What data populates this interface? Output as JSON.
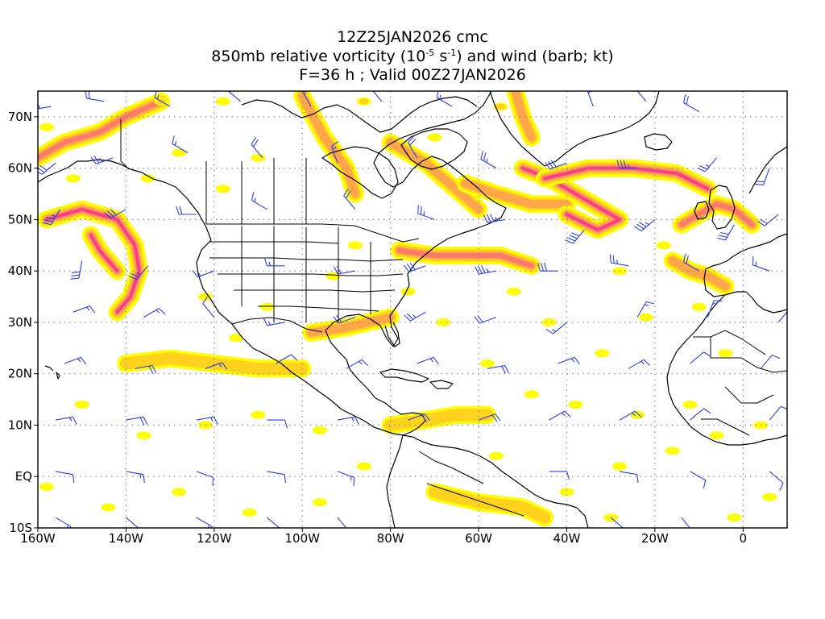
{
  "title": {
    "line1": "12Z25JAN2026 cmc",
    "line2_pre": "850mb relative vorticity (10",
    "line2_exp1": "-5",
    "line2_mid": " s",
    "line2_exp2": "-1",
    "line2_post": ") and wind (barb; kt)",
    "line3": "F=36 h ; Valid 00Z27JAN2026"
  },
  "axes": {
    "x_ticks": [
      {
        "value": -160,
        "label": "160W"
      },
      {
        "value": -140,
        "label": "140W"
      },
      {
        "value": -120,
        "label": "120W"
      },
      {
        "value": -100,
        "label": "100W"
      },
      {
        "value": -80,
        "label": "80W"
      },
      {
        "value": -60,
        "label": "60W"
      },
      {
        "value": -40,
        "label": "40W"
      },
      {
        "value": -20,
        "label": "20W"
      },
      {
        "value": 0,
        "label": "0"
      }
    ],
    "y_ticks": [
      {
        "value": -10,
        "label": "10S"
      },
      {
        "value": 0,
        "label": "EQ"
      },
      {
        "value": 10,
        "label": "10N"
      },
      {
        "value": 20,
        "label": "20N"
      },
      {
        "value": 30,
        "label": "30N"
      },
      {
        "value": 40,
        "label": "40N"
      },
      {
        "value": 50,
        "label": "50N"
      },
      {
        "value": 60,
        "label": "60N"
      },
      {
        "value": 70,
        "label": "70N"
      }
    ],
    "lon_range": [
      -160,
      10
    ],
    "lat_range": [
      -10,
      75
    ],
    "grid": true,
    "grid_style": "dotted"
  },
  "colors": {
    "vorticity_levels": [
      "#ffff00",
      "#ffd21e",
      "#ffa54a",
      "#ff7a6a",
      "#ff3a8a"
    ],
    "barb": "#2b3fe0",
    "coastline": "#000000",
    "grid": "#8c8c8c"
  },
  "vorticity_features": [
    {
      "name": "gulf-of-alaska-low",
      "path": [
        [
          -158,
          50
        ],
        [
          -150,
          52
        ],
        [
          -142,
          50
        ],
        [
          -138,
          45
        ],
        [
          -137,
          40
        ],
        [
          -139,
          35
        ],
        [
          -142,
          32
        ]
      ],
      "peak": 4
    },
    {
      "name": "alaska-band",
      "path": [
        [
          -160,
          62
        ],
        [
          -154,
          65
        ],
        [
          -146,
          67
        ],
        [
          -140,
          70
        ],
        [
          -132,
          73
        ]
      ],
      "peak": 3
    },
    {
      "name": "nepac-inner",
      "path": [
        [
          -148,
          47
        ],
        [
          -146,
          44
        ],
        [
          -144,
          42
        ],
        [
          -142,
          40
        ]
      ],
      "peak": 4
    },
    {
      "name": "hudson-band",
      "path": [
        [
          -100,
          74
        ],
        [
          -95,
          66
        ],
        [
          -90,
          60
        ],
        [
          -88,
          55
        ]
      ],
      "peak": 2
    },
    {
      "name": "canada-east",
      "path": [
        [
          -80,
          65
        ],
        [
          -72,
          61
        ],
        [
          -64,
          55
        ],
        [
          -60,
          52
        ]
      ],
      "peak": 2
    },
    {
      "name": "us-east-coast",
      "path": [
        [
          -78,
          44
        ],
        [
          -70,
          43
        ],
        [
          -62,
          43
        ],
        [
          -55,
          43
        ],
        [
          -48,
          41
        ]
      ],
      "peak": 3
    },
    {
      "name": "labrador-sea",
      "path": [
        [
          -63,
          57
        ],
        [
          -56,
          55
        ],
        [
          -48,
          53
        ],
        [
          -40,
          53
        ]
      ],
      "peak": 2
    },
    {
      "name": "atlantic-low",
      "path": [
        [
          -50,
          60
        ],
        [
          -44,
          58
        ],
        [
          -38,
          55
        ],
        [
          -32,
          52
        ],
        [
          -28,
          50
        ],
        [
          -33,
          48
        ],
        [
          -40,
          51
        ]
      ],
      "peak": 4
    },
    {
      "name": "iceland-band",
      "path": [
        [
          -45,
          58
        ],
        [
          -35,
          60
        ],
        [
          -25,
          60
        ],
        [
          -15,
          59
        ],
        [
          -8,
          56
        ]
      ],
      "peak": 4
    },
    {
      "name": "uk-low",
      "path": [
        [
          -14,
          49
        ],
        [
          -10,
          51
        ],
        [
          -6,
          53
        ],
        [
          -2,
          52
        ],
        [
          2,
          49
        ]
      ],
      "peak": 3
    },
    {
      "name": "iberia",
      "path": [
        [
          -16,
          42
        ],
        [
          -12,
          40
        ],
        [
          -8,
          39
        ],
        [
          -4,
          37
        ]
      ],
      "peak": 2
    },
    {
      "name": "greenland-east",
      "path": [
        [
          -52,
          76
        ],
        [
          -50,
          70
        ],
        [
          -48,
          66
        ]
      ],
      "peak": 2
    },
    {
      "name": "gulf-coast",
      "path": [
        [
          -98,
          28
        ],
        [
          -90,
          29
        ],
        [
          -85,
          30
        ],
        [
          -80,
          31
        ]
      ],
      "peak": 2
    },
    {
      "name": "tropical-pacific",
      "path": [
        [
          -140,
          22
        ],
        [
          -130,
          23
        ],
        [
          -120,
          22
        ],
        [
          -110,
          21
        ],
        [
          -100,
          21
        ]
      ],
      "peak": 1
    },
    {
      "name": "caribbean",
      "path": [
        [
          -80,
          10
        ],
        [
          -72,
          11
        ],
        [
          -65,
          12
        ],
        [
          -58,
          12
        ]
      ],
      "peak": 1
    },
    {
      "name": "amazon",
      "path": [
        [
          -70,
          -3
        ],
        [
          -60,
          -5
        ],
        [
          -50,
          -6
        ],
        [
          -45,
          -8
        ]
      ],
      "peak": 1
    }
  ],
  "vorticity_spots": [
    [
      -158,
      68,
      1
    ],
    [
      -132,
      73,
      2
    ],
    [
      -118,
      73,
      1
    ],
    [
      -86,
      73,
      2
    ],
    [
      -70,
      66,
      1
    ],
    [
      -55,
      72,
      2
    ],
    [
      -152,
      58,
      1
    ],
    [
      -135,
      58,
      1
    ],
    [
      -128,
      63,
      1
    ],
    [
      -110,
      62,
      1
    ],
    [
      -118,
      56,
      1
    ],
    [
      -122,
      35,
      1
    ],
    [
      -115,
      27,
      1
    ],
    [
      -108,
      33,
      1
    ],
    [
      -93,
      39,
      1
    ],
    [
      -88,
      45,
      1
    ],
    [
      -76,
      36,
      1
    ],
    [
      -68,
      30,
      1
    ],
    [
      -58,
      22,
      1
    ],
    [
      -52,
      36,
      1
    ],
    [
      -44,
      30,
      1
    ],
    [
      -32,
      24,
      1
    ],
    [
      -22,
      31,
      1
    ],
    [
      -28,
      40,
      1
    ],
    [
      -18,
      45,
      1
    ],
    [
      -10,
      33,
      1
    ],
    [
      -4,
      24,
      1
    ],
    [
      -12,
      14,
      1
    ],
    [
      -24,
      12,
      1
    ],
    [
      -38,
      14,
      1
    ],
    [
      -48,
      16,
      1
    ],
    [
      -150,
      14,
      1
    ],
    [
      -136,
      8,
      1
    ],
    [
      -122,
      10,
      1
    ],
    [
      -110,
      12,
      1
    ],
    [
      -96,
      9,
      1
    ],
    [
      -86,
      2,
      1
    ],
    [
      -158,
      -2,
      1
    ],
    [
      -144,
      -6,
      1
    ],
    [
      -128,
      -3,
      1
    ],
    [
      -112,
      -7,
      1
    ],
    [
      -96,
      -5,
      1
    ],
    [
      -40,
      -3,
      1
    ],
    [
      -28,
      2,
      1
    ],
    [
      -16,
      5,
      1
    ],
    [
      -6,
      8,
      1
    ],
    [
      4,
      10,
      1
    ],
    [
      6,
      -4,
      1
    ],
    [
      -2,
      -8,
      1
    ],
    [
      -30,
      -8,
      1
    ],
    [
      -56,
      4,
      1
    ]
  ],
  "wind_barbs": [
    [
      -157,
      72,
      260,
      25
    ],
    [
      -145,
      73,
      280,
      20
    ],
    [
      -130,
      72,
      300,
      15
    ],
    [
      -114,
      73,
      310,
      20
    ],
    [
      -98,
      72,
      330,
      15
    ],
    [
      -82,
      73,
      320,
      20
    ],
    [
      -66,
      72,
      300,
      15
    ],
    [
      -34,
      72,
      340,
      20
    ],
    [
      -22,
      73,
      320,
      15
    ],
    [
      -10,
      71,
      300,
      20
    ],
    [
      -156,
      61,
      230,
      30
    ],
    [
      -143,
      62,
      250,
      25
    ],
    [
      -126,
      63,
      300,
      15
    ],
    [
      -109,
      62,
      320,
      20
    ],
    [
      -92,
      61,
      340,
      15
    ],
    [
      -74,
      62,
      330,
      20
    ],
    [
      -56,
      60,
      300,
      25
    ],
    [
      -40,
      61,
      250,
      30
    ],
    [
      -24,
      60,
      270,
      35
    ],
    [
      -6,
      62,
      220,
      25
    ],
    [
      6,
      60,
      200,
      20
    ],
    [
      -155,
      52,
      210,
      35
    ],
    [
      -140,
      52,
      240,
      30
    ],
    [
      -124,
      51,
      270,
      20
    ],
    [
      -108,
      52,
      300,
      15
    ],
    [
      -88,
      52,
      320,
      20
    ],
    [
      -70,
      50,
      290,
      25
    ],
    [
      -54,
      50,
      260,
      35
    ],
    [
      -36,
      48,
      220,
      40
    ],
    [
      -20,
      50,
      230,
      35
    ],
    [
      -2,
      49,
      210,
      30
    ],
    [
      8,
      51,
      230,
      20
    ],
    [
      -150,
      42,
      190,
      30
    ],
    [
      -135,
      41,
      220,
      25
    ],
    [
      -120,
      40,
      250,
      15
    ],
    [
      -104,
      41,
      270,
      15
    ],
    [
      -88,
      40,
      260,
      20
    ],
    [
      -72,
      41,
      250,
      30
    ],
    [
      -56,
      40,
      260,
      35
    ],
    [
      -42,
      40,
      270,
      30
    ],
    [
      -26,
      41,
      280,
      25
    ],
    [
      -10,
      40,
      300,
      20
    ],
    [
      6,
      40,
      290,
      15
    ],
    [
      -152,
      32,
      70,
      15
    ],
    [
      -136,
      31,
      60,
      15
    ],
    [
      -120,
      31,
      320,
      10
    ],
    [
      -104,
      30,
      260,
      15
    ],
    [
      -88,
      31,
      250,
      20
    ],
    [
      -72,
      32,
      240,
      25
    ],
    [
      -56,
      31,
      250,
      20
    ],
    [
      -40,
      30,
      230,
      15
    ],
    [
      -24,
      31,
      30,
      15
    ],
    [
      -8,
      31,
      20,
      15
    ],
    [
      8,
      30,
      40,
      10
    ],
    [
      -154,
      22,
      70,
      15
    ],
    [
      -138,
      21,
      80,
      20
    ],
    [
      -122,
      21,
      70,
      15
    ],
    [
      -106,
      22,
      60,
      10
    ],
    [
      -90,
      21,
      60,
      15
    ],
    [
      -74,
      22,
      70,
      15
    ],
    [
      -58,
      21,
      80,
      20
    ],
    [
      -42,
      22,
      70,
      15
    ],
    [
      -26,
      21,
      60,
      15
    ],
    [
      -12,
      22,
      50,
      10
    ],
    [
      4,
      21,
      40,
      10
    ],
    [
      -156,
      11,
      80,
      15
    ],
    [
      -140,
      11,
      80,
      20
    ],
    [
      -124,
      11,
      80,
      15
    ],
    [
      -108,
      11,
      90,
      10
    ],
    [
      -92,
      11,
      80,
      15
    ],
    [
      -76,
      11,
      70,
      20
    ],
    [
      -60,
      11,
      70,
      20
    ],
    [
      -44,
      11,
      60,
      15
    ],
    [
      -28,
      11,
      60,
      15
    ],
    [
      -12,
      11,
      50,
      10
    ],
    [
      6,
      11,
      40,
      10
    ],
    [
      -156,
      1,
      100,
      10
    ],
    [
      -140,
      1,
      100,
      15
    ],
    [
      -124,
      1,
      110,
      10
    ],
    [
      -108,
      1,
      100,
      10
    ],
    [
      -92,
      1,
      110,
      15
    ],
    [
      -44,
      1,
      90,
      10
    ],
    [
      -28,
      1,
      100,
      10
    ],
    [
      -12,
      1,
      120,
      10
    ],
    [
      6,
      1,
      130,
      10
    ],
    [
      -156,
      -8,
      120,
      15
    ],
    [
      -140,
      -8,
      130,
      10
    ],
    [
      -124,
      -8,
      120,
      15
    ],
    [
      -108,
      -8,
      130,
      10
    ],
    [
      -92,
      -8,
      140,
      10
    ],
    [
      -30,
      -8,
      130,
      10
    ],
    [
      -14,
      -8,
      140,
      10
    ]
  ]
}
